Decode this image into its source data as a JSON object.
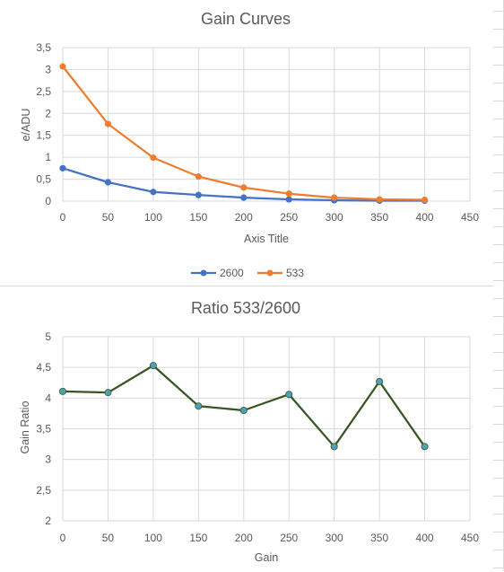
{
  "chart_data": [
    {
      "type": "line",
      "title": "Gain Curves",
      "xlabel": "Axis Title",
      "ylabel": "e/ADU",
      "x": [
        0,
        50,
        100,
        150,
        200,
        250,
        300,
        350,
        400
      ],
      "xlim": [
        0,
        450
      ],
      "xticks": [
        "0",
        "50",
        "100",
        "150",
        "200",
        "250",
        "300",
        "350",
        "400",
        "450"
      ],
      "ylim": [
        0,
        3.5
      ],
      "yticks": [
        "0",
        "0,5",
        "1",
        "1,5",
        "2",
        "2,5",
        "3",
        "3,5"
      ],
      "grid": true,
      "legend": "bottom",
      "series": [
        {
          "name": "2600",
          "color": "#4472c4",
          "values": [
            0.75,
            0.43,
            0.21,
            0.14,
            0.08,
            0.04,
            0.02,
            0.01,
            0.01
          ]
        },
        {
          "name": "533",
          "color": "#ed7d31",
          "values": [
            3.07,
            1.76,
            0.99,
            0.56,
            0.31,
            0.17,
            0.08,
            0.04,
            0.03
          ]
        }
      ]
    },
    {
      "type": "line",
      "title": "Ratio 533/2600",
      "xlabel": "Gain",
      "ylabel": "Gain Ratio",
      "x": [
        0,
        50,
        100,
        150,
        200,
        250,
        300,
        350,
        400
      ],
      "xlim": [
        0,
        450
      ],
      "xticks": [
        "0",
        "50",
        "100",
        "150",
        "200",
        "250",
        "300",
        "350",
        "400",
        "450"
      ],
      "ylim": [
        2,
        5
      ],
      "yticks": [
        "2",
        "2,5",
        "3",
        "3,5",
        "4",
        "4,5",
        "5"
      ],
      "grid": true,
      "legend": "none",
      "series": [
        {
          "color": "#375623",
          "marker_color": "#4ea0b8",
          "values": [
            4.11,
            4.09,
            4.53,
            3.87,
            3.8,
            4.06,
            3.21,
            4.27,
            3.21
          ]
        }
      ]
    }
  ]
}
